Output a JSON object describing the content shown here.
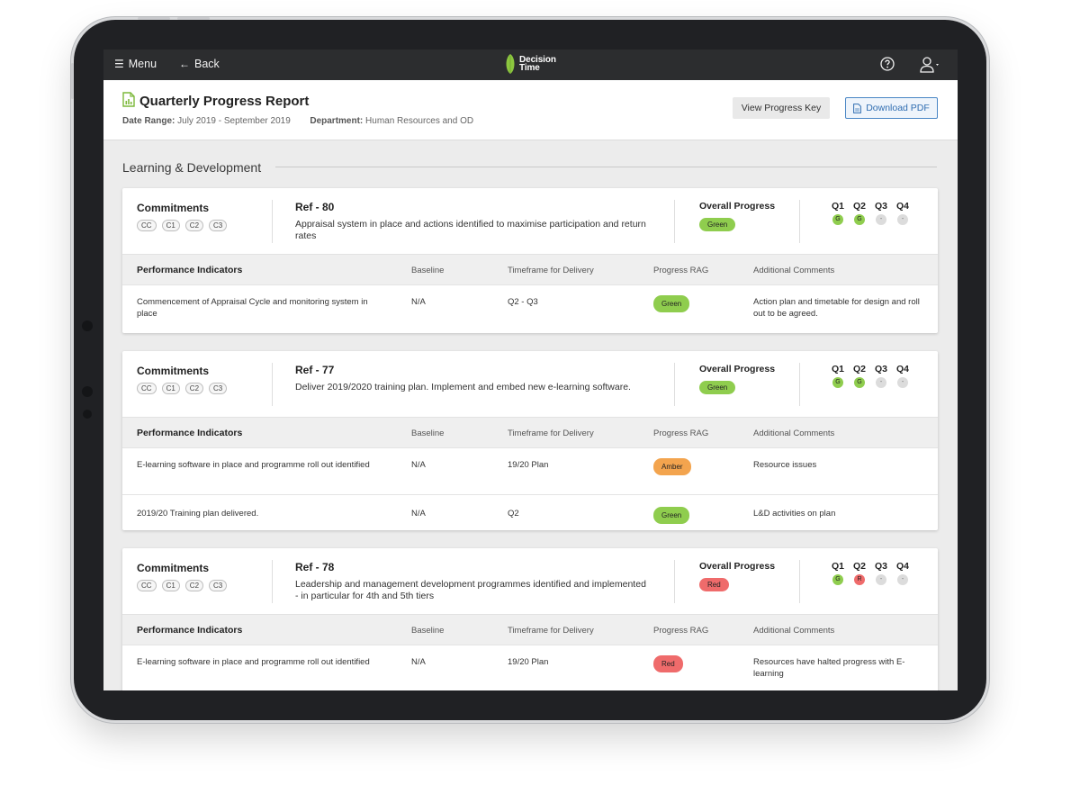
{
  "topbar": {
    "menu_label": "Menu",
    "back_label": "Back",
    "logo_text_1": "Decision",
    "logo_text_2": "Time",
    "brand_color": "#8cc63f"
  },
  "header": {
    "title": "Quarterly Progress Report",
    "date_range_label": "Date Range:",
    "date_range_value": "July 2019 - September 2019",
    "department_label": "Department:",
    "department_value": "Human Resources and OD",
    "view_key_label": "View Progress Key",
    "download_label": "Download PDF"
  },
  "section": {
    "title": "Learning & Development"
  },
  "labels": {
    "commitments": "Commitments",
    "overall_progress": "Overall Progress",
    "performance_indicators": "Performance Indicators",
    "baseline": "Baseline",
    "timeframe": "Timeframe for Delivery",
    "progress_rag": "Progress RAG",
    "additional_comments": "Additional Comments",
    "chips": [
      "CC",
      "C1",
      "C2",
      "C3"
    ],
    "quarters": [
      "Q1",
      "Q2",
      "Q3",
      "Q4"
    ]
  },
  "cards": [
    {
      "ref": "Ref - 80",
      "description": "Appraisal system in place and actions identified to maximise participation and return rates",
      "overall": "Green",
      "quarters": [
        "G",
        "G",
        "-",
        "-"
      ],
      "rows": [
        {
          "indicator": "Commencement of Appraisal Cycle and monitoring system in place",
          "baseline": "N/A",
          "timeframe": "Q2 - Q3",
          "rag": "Green",
          "comment": "Action plan and timetable for design and roll out to be agreed."
        }
      ]
    },
    {
      "ref": "Ref - 77",
      "description": "Deliver 2019/2020 training plan. Implement and embed new e-learning software.",
      "overall": "Green",
      "quarters": [
        "G",
        "G",
        "-",
        "-"
      ],
      "rows": [
        {
          "indicator": "E-learning software in place and programme roll out identified",
          "baseline": "N/A",
          "timeframe": "19/20 Plan",
          "rag": "Amber",
          "comment": "Resource issues"
        },
        {
          "indicator": "2019/20 Training plan delivered.",
          "baseline": "N/A",
          "timeframe": "Q2",
          "rag": "Green",
          "comment": "L&D activities on plan"
        }
      ]
    },
    {
      "ref": "Ref - 78",
      "description": "Leadership and management development programmes identified and implemented - in particular for 4th and 5th tiers",
      "overall": "Red",
      "quarters": [
        "G",
        "R",
        "-",
        "-"
      ],
      "rows": [
        {
          "indicator": "E-learning software in place and programme roll out identified",
          "baseline": "N/A",
          "timeframe": "19/20 Plan",
          "rag": "Red",
          "comment": "Resources have halted progress with E-learning"
        }
      ]
    }
  ],
  "status_colors": {
    "Green": "#8fcd4e",
    "Amber": "#f3a44e",
    "Red": "#ef6b6b"
  }
}
